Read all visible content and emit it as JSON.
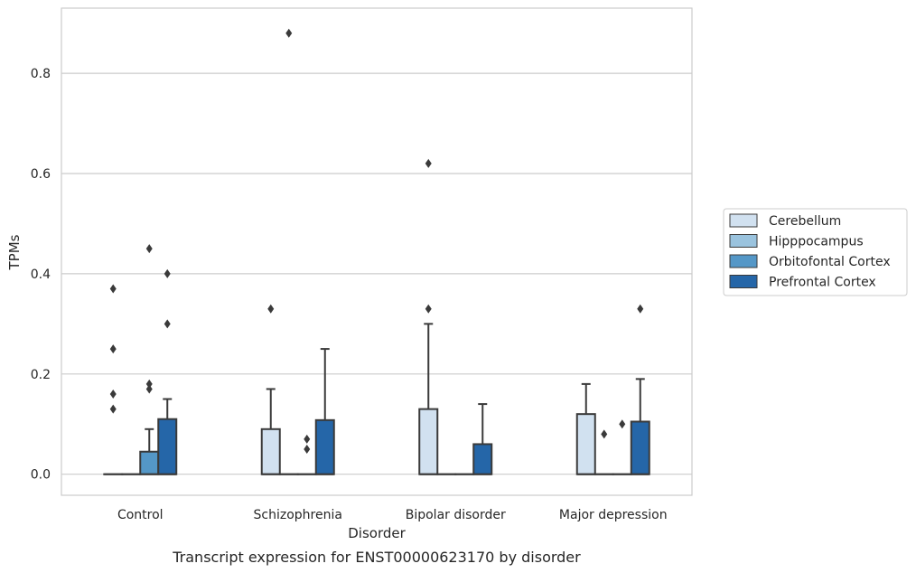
{
  "chart_data": {
    "type": "box",
    "caption": "Transcript expression for ENST00000623170 by disorder",
    "xlabel": "Disorder",
    "ylabel": "TPMs",
    "ylim": [
      -0.042,
      0.93
    ],
    "yticks": [
      "0.0",
      "0.2",
      "0.4",
      "0.6",
      "0.8"
    ],
    "categories": [
      "Control",
      "Schizophrenia",
      "Bipolar disorder",
      "Major depression"
    ],
    "grid": "horizontal",
    "legend_position": "right",
    "series": [
      {
        "name": "Cerebellum",
        "color": "#d1e1f0",
        "boxes": [
          {
            "q1": 0,
            "median": 0,
            "q3": 0,
            "whisker_low": 0,
            "whisker_high": 0,
            "outliers": [
              0.37,
              0.25,
              0.16,
              0.13
            ]
          },
          {
            "q1": 0,
            "median": 0,
            "q3": 0.09,
            "whisker_low": 0,
            "whisker_high": 0.17,
            "outliers": [
              0.33
            ]
          },
          {
            "q1": 0,
            "median": 0,
            "q3": 0.13,
            "whisker_low": 0,
            "whisker_high": 0.3,
            "outliers": [
              0.33,
              0.62
            ]
          },
          {
            "q1": 0,
            "median": 0,
            "q3": 0.12,
            "whisker_low": 0,
            "whisker_high": 0.18,
            "outliers": []
          }
        ]
      },
      {
        "name": "Hipppocampus",
        "color": "#9ac3de",
        "boxes": [
          {
            "q1": 0,
            "median": 0,
            "q3": 0,
            "whisker_low": 0,
            "whisker_high": 0,
            "outliers": []
          },
          {
            "q1": 0,
            "median": 0,
            "q3": 0,
            "whisker_low": 0,
            "whisker_high": 0,
            "outliers": [
              0.88
            ]
          },
          {
            "q1": 0,
            "median": 0,
            "q3": 0,
            "whisker_low": 0,
            "whisker_high": 0,
            "outliers": []
          },
          {
            "q1": 0,
            "median": 0,
            "q3": 0,
            "whisker_low": 0,
            "whisker_high": 0,
            "outliers": [
              0.08
            ]
          }
        ]
      },
      {
        "name": "Orbitofontal Cortex",
        "color": "#5497c7",
        "boxes": [
          {
            "q1": 0,
            "median": 0,
            "q3": 0.045,
            "whisker_low": 0,
            "whisker_high": 0.09,
            "outliers": [
              0.45,
              0.18,
              0.17
            ]
          },
          {
            "q1": 0,
            "median": 0,
            "q3": 0,
            "whisker_low": 0,
            "whisker_high": 0,
            "outliers": [
              0.07,
              0.05
            ]
          },
          {
            "q1": 0,
            "median": 0,
            "q3": 0,
            "whisker_low": 0,
            "whisker_high": 0,
            "outliers": []
          },
          {
            "q1": 0,
            "median": 0,
            "q3": 0,
            "whisker_low": 0,
            "whisker_high": 0,
            "outliers": [
              0.1
            ]
          }
        ]
      },
      {
        "name": "Prefrontal Cortex",
        "color": "#2566a8",
        "boxes": [
          {
            "q1": 0,
            "median": 0,
            "q3": 0.11,
            "whisker_low": 0,
            "whisker_high": 0.15,
            "outliers": [
              0.4,
              0.3
            ]
          },
          {
            "q1": 0,
            "median": 0,
            "q3": 0.108,
            "whisker_low": 0,
            "whisker_high": 0.25,
            "outliers": []
          },
          {
            "q1": 0,
            "median": 0,
            "q3": 0.06,
            "whisker_low": 0,
            "whisker_high": 0.14,
            "outliers": []
          },
          {
            "q1": 0,
            "median": 0,
            "q3": 0.105,
            "whisker_low": 0,
            "whisker_high": 0.19,
            "outliers": [
              0.33
            ]
          }
        ]
      }
    ]
  },
  "colors": {
    "grid": "#cccccc",
    "frame": "#cccccc",
    "line": "#3a3a3a",
    "text": "#262626"
  }
}
